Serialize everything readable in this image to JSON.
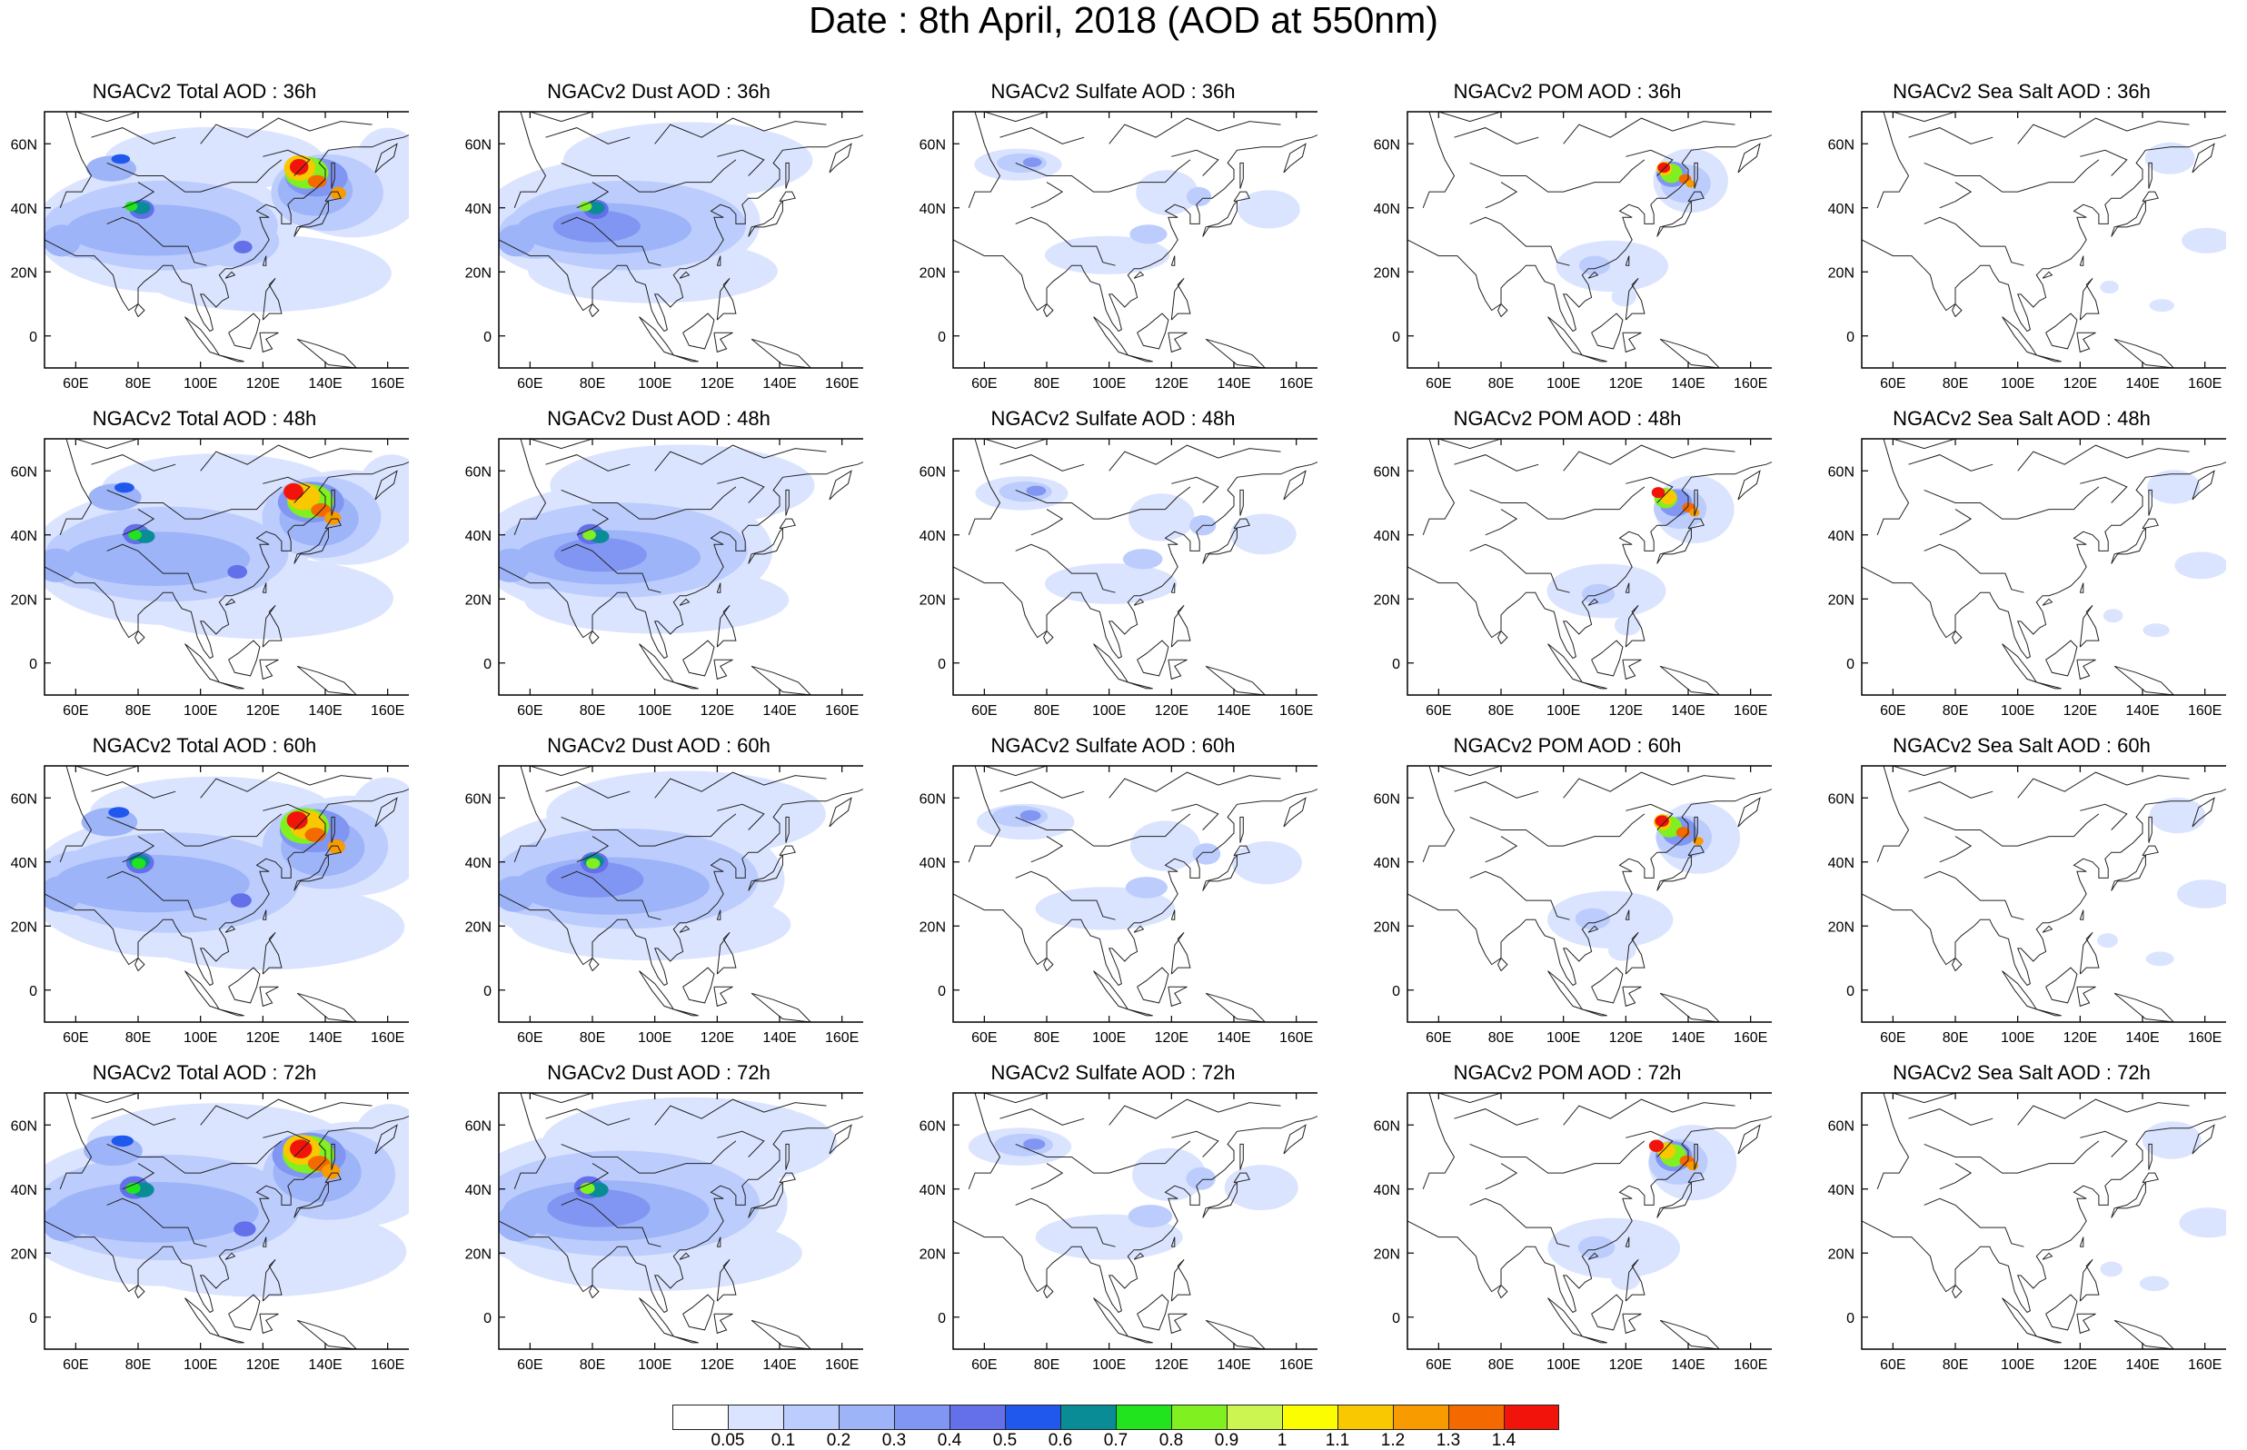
{
  "title": "Date : 8th April, 2018 (AOD at 550nm)",
  "lat_labels": [
    "60N",
    "40N",
    "20N",
    "0"
  ],
  "lon_labels": [
    "60E",
    "80E",
    "100E",
    "120E",
    "140E",
    "160E"
  ],
  "panel_titles": [
    [
      "NGACv2 Total AOD : 36h",
      "NGACv2 Dust AOD : 36h",
      "NGACv2 Sulfate AOD : 36h",
      "NGACv2 POM AOD : 36h",
      "NGACv2 Sea Salt AOD : 36h"
    ],
    [
      "NGACv2 Total AOD : 48h",
      "NGACv2 Dust AOD : 48h",
      "NGACv2 Sulfate AOD : 48h",
      "NGACv2 POM AOD : 48h",
      "NGACv2 Sea Salt AOD : 48h"
    ],
    [
      "NGACv2 Total AOD : 60h",
      "NGACv2 Dust AOD : 60h",
      "NGACv2 Sulfate AOD : 60h",
      "NGACv2 POM AOD : 60h",
      "NGACv2 Sea Salt AOD : 60h"
    ],
    [
      "NGACv2 Total AOD : 72h",
      "NGACv2 Dust AOD : 72h",
      "NGACv2 Sulfate AOD : 72h",
      "NGACv2 POM AOD : 72h",
      "NGACv2 Sea Salt  AOD : 72h"
    ]
  ],
  "colorbar": {
    "labels": [
      "0.05",
      "0.1",
      "0.2",
      "0.3",
      "0.4",
      "0.5",
      "0.6",
      "0.7",
      "0.8",
      "0.9",
      "1",
      "1.1",
      "1.2",
      "1.3",
      "1.4"
    ],
    "colors": [
      "#ffffff",
      "#dbe4ff",
      "#bccdfd",
      "#9eb4f8",
      "#8196f2",
      "#6470ea",
      "#2058ee",
      "#0a8c96",
      "#22e41e",
      "#80f020",
      "#cdf552",
      "#fbfd00",
      "#f9c800",
      "#f79b00",
      "#f56a00",
      "#f2140a"
    ]
  }
}
